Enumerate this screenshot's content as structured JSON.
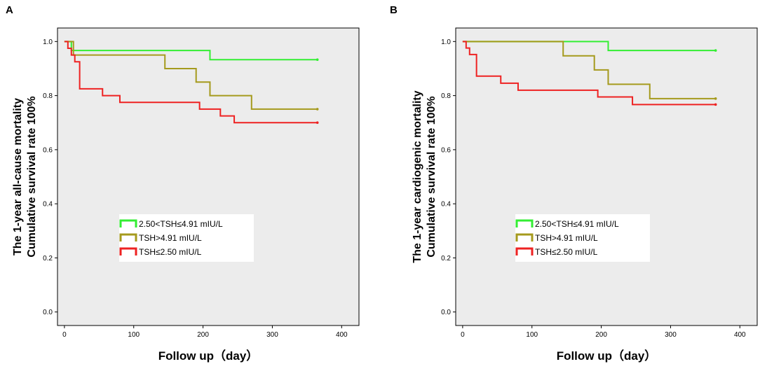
{
  "panels": [
    {
      "letter": "A",
      "chart_data": {
        "type": "line",
        "title": "",
        "ylabel_line1": "The 1-year all-cause mortality",
        "ylabel_line2": "Cumulative survival rate 100%",
        "xlabel": "Follow up（day）",
        "xlim": [
          -10,
          425
        ],
        "ylim": [
          -0.05,
          1.05
        ],
        "xticks": [
          0,
          100,
          200,
          300,
          400
        ],
        "yticks": [
          0.0,
          0.2,
          0.4,
          0.6,
          0.8,
          1.0
        ],
        "xtick_labels": [
          "0",
          "100",
          "200",
          "300",
          "400"
        ],
        "ytick_labels": [
          "0.0",
          "0.2",
          "0.4",
          "0.6",
          "0.8",
          "1.0"
        ],
        "legend_position": "lower-center",
        "series": [
          {
            "name": "2.50<TSH≤4.91 mIU/L",
            "color": "#33ee33",
            "steps": [
              [
                0,
                1.0
              ],
              [
                10,
                0.967
              ],
              [
                210,
                0.933
              ],
              [
                365,
                0.933
              ]
            ]
          },
          {
            "name": "TSH>4.91 mIU/L",
            "color": "#a59a1d",
            "steps": [
              [
                0,
                1.0
              ],
              [
                13,
                0.95
              ],
              [
                145,
                0.9
              ],
              [
                190,
                0.85
              ],
              [
                210,
                0.8
              ],
              [
                270,
                0.75
              ],
              [
                365,
                0.75
              ]
            ]
          },
          {
            "name": "TSH≤2.50 mIU/L",
            "color": "#ee2222",
            "steps": [
              [
                0,
                1.0
              ],
              [
                5,
                0.975
              ],
              [
                10,
                0.95
              ],
              [
                15,
                0.925
              ],
              [
                22,
                0.825
              ],
              [
                55,
                0.8
              ],
              [
                80,
                0.775
              ],
              [
                195,
                0.75
              ],
              [
                225,
                0.725
              ],
              [
                245,
                0.7
              ],
              [
                365,
                0.7
              ]
            ]
          }
        ]
      }
    },
    {
      "letter": "B",
      "chart_data": {
        "type": "line",
        "title": "",
        "ylabel_line1": "The 1-year cardiogenic mortality",
        "ylabel_line2": "Cumulative survival rate 100%",
        "xlabel": "Follow up（day）",
        "xlim": [
          -10,
          425
        ],
        "ylim": [
          -0.05,
          1.05
        ],
        "xticks": [
          0,
          100,
          200,
          300,
          400
        ],
        "yticks": [
          0.0,
          0.2,
          0.4,
          0.6,
          0.8,
          1.0
        ],
        "xtick_labels": [
          "0",
          "100",
          "200",
          "300",
          "400"
        ],
        "ytick_labels": [
          "0.0",
          "0.2",
          "0.4",
          "0.6",
          "0.8",
          "1.0"
        ],
        "legend_position": "lower-center",
        "series": [
          {
            "name": "2.50<TSH≤4.91 mIU/L",
            "color": "#33ee33",
            "steps": [
              [
                0,
                1.0
              ],
              [
                210,
                0.967
              ],
              [
                365,
                0.967
              ]
            ]
          },
          {
            "name": "TSH>4.91 mIU/L",
            "color": "#a59a1d",
            "steps": [
              [
                0,
                1.0
              ],
              [
                145,
                0.947
              ],
              [
                190,
                0.895
              ],
              [
                210,
                0.842
              ],
              [
                270,
                0.789
              ],
              [
                365,
                0.789
              ]
            ]
          },
          {
            "name": "TSH≤2.50 mIU/L",
            "color": "#ee2222",
            "steps": [
              [
                0,
                1.0
              ],
              [
                5,
                0.976
              ],
              [
                10,
                0.952
              ],
              [
                20,
                0.872
              ],
              [
                55,
                0.846
              ],
              [
                80,
                0.82
              ],
              [
                195,
                0.795
              ],
              [
                245,
                0.767
              ],
              [
                365,
                0.767
              ]
            ]
          }
        ]
      }
    }
  ]
}
